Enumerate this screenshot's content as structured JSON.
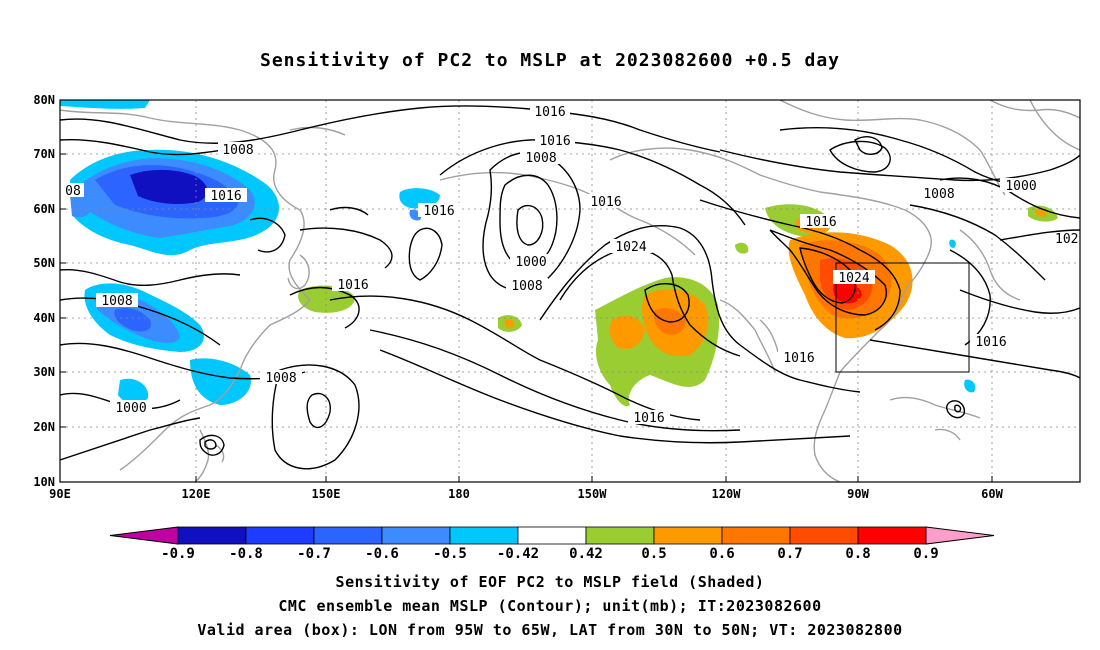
{
  "title": "Sensitivity of PC2 to MSLP at 2023082600 +0.5 day",
  "lat_labels": [
    "80N",
    "70N",
    "60N",
    "50N",
    "40N",
    "30N",
    "20N",
    "10N"
  ],
  "lon_labels": [
    "90E",
    "120E",
    "150E",
    "180",
    "150W",
    "120W",
    "90W",
    "60W"
  ],
  "contour_labels": {
    "l1": "1016",
    "l2": "1016",
    "l3": "1008",
    "l4": "1016",
    "l5": "1016",
    "l6": "1024",
    "l7": "1008",
    "l8": "1016",
    "l9": "1000",
    "l10": "1008",
    "l11": "1016",
    "l12": "1008",
    "l13": "1000",
    "l14": "1016",
    "l15": "1024",
    "l16": "1016",
    "l17": "1016",
    "l18": "1016",
    "l19": "1008",
    "l20": "1008",
    "l21": "1000",
    "l22": "08",
    "l23": "102"
  },
  "colorbar": {
    "labels": [
      "-0.9",
      "-0.8",
      "-0.7",
      "-0.6",
      "-0.5",
      "-0.42",
      "0.42",
      "0.5",
      "0.6",
      "0.7",
      "0.8",
      "0.9"
    ],
    "colors": [
      "#1010c0",
      "#1e3cff",
      "#2c64ff",
      "#3c8cff",
      "#00c8ff",
      "#ffffff",
      "#9acd32",
      "#ff9900",
      "#ff7700",
      "#ff4c00",
      "#ff0000"
    ],
    "low_end_color": "#c000a0",
    "high_end_color": "#ff9ec8"
  },
  "footer": {
    "line1": "Sensitivity of EOF PC2 to MSLP field (Shaded)",
    "line2": "CMC ensemble mean MSLP (Contour); unit(mb); IT:2023082600",
    "line3": "Valid area (box): LON from 95W to 65W, LAT from 30N to 50N; VT: 2023082800"
  }
}
